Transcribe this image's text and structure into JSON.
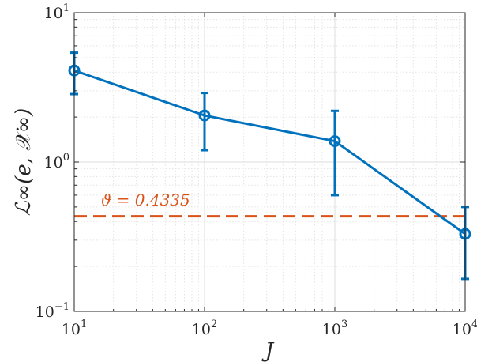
{
  "chart_data": {
    "type": "line",
    "title": "",
    "xlabel": "J",
    "ylabel": "ℒ∞(e, 𝒳∞)",
    "xscale": "log",
    "yscale": "log",
    "xlim": [
      10,
      10000
    ],
    "ylim": [
      0.1,
      10
    ],
    "grid": true,
    "x_ticks": [
      {
        "value": 10,
        "base": "10",
        "exp": "1"
      },
      {
        "value": 100,
        "base": "10",
        "exp": "2"
      },
      {
        "value": 1000,
        "base": "10",
        "exp": "3"
      },
      {
        "value": 10000,
        "base": "10",
        "exp": "4"
      }
    ],
    "y_ticks": [
      {
        "value": 0.1,
        "base": "10",
        "exp": "−1"
      },
      {
        "value": 1,
        "base": "10",
        "exp": "0"
      },
      {
        "value": 10,
        "base": "10",
        "exp": "1"
      }
    ],
    "series": [
      {
        "color": "#0072BD",
        "marker": "circle",
        "x": [
          10,
          100,
          1000,
          10000
        ],
        "y": [
          4.1,
          2.05,
          1.38,
          0.33
        ],
        "err_low": [
          2.85,
          1.2,
          0.6,
          0.165
        ],
        "err_high": [
          5.4,
          2.9,
          2.2,
          0.5
        ]
      }
    ],
    "reference_line": {
      "value": 0.4335,
      "style": "dashed",
      "color": "#D95319",
      "label": "ϑ = 0.4335"
    }
  }
}
